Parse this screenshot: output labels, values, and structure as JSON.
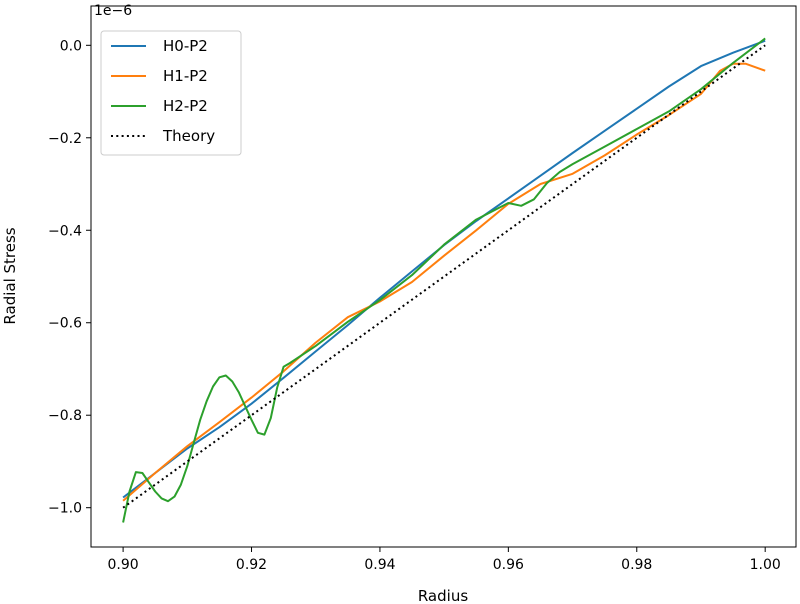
{
  "chart_data": {
    "type": "line",
    "title": "",
    "xlabel": "Radius",
    "ylabel": "Radial Stress",
    "y_offset_label": "1e−6",
    "xlim": [
      0.895,
      1.0048
    ],
    "ylim": [
      -1.085,
      0.085
    ],
    "xticks": [
      0.9,
      0.92,
      0.94,
      0.96,
      0.98,
      1.0
    ],
    "xtick_labels": [
      "0.90",
      "0.92",
      "0.94",
      "0.96",
      "0.98",
      "1.00"
    ],
    "yticks": [
      0.0,
      -0.2,
      -0.4,
      -0.6,
      -0.8,
      -1.0
    ],
    "ytick_labels": [
      "0.0",
      "−0.2",
      "−0.4",
      "−0.6",
      "−0.8",
      "−1.0"
    ],
    "grid": false,
    "legend_position": "top-left",
    "series": [
      {
        "name": "H0-P2",
        "color": "#1f77b4",
        "style": "solid",
        "x": [
          0.9,
          0.905,
          0.91,
          0.915,
          0.92,
          0.925,
          0.93,
          0.935,
          0.94,
          0.945,
          0.95,
          0.955,
          0.96,
          0.965,
          0.97,
          0.975,
          0.98,
          0.985,
          0.99,
          0.995,
          1.0
        ],
        "y": [
          -0.978,
          -0.925,
          -0.872,
          -0.826,
          -0.775,
          -0.719,
          -0.662,
          -0.605,
          -0.546,
          -0.489,
          -0.432,
          -0.38,
          -0.331,
          -0.282,
          -0.233,
          -0.185,
          -0.137,
          -0.089,
          -0.045,
          -0.016,
          0.01
        ]
      },
      {
        "name": "H1-P2",
        "color": "#ff7f0e",
        "style": "solid",
        "x": [
          0.9,
          0.905,
          0.91,
          0.915,
          0.92,
          0.925,
          0.93,
          0.935,
          0.94,
          0.945,
          0.95,
          0.955,
          0.96,
          0.965,
          0.97,
          0.975,
          0.98,
          0.985,
          0.99,
          0.993,
          0.995,
          0.997,
          1.0
        ],
        "y": [
          -0.985,
          -0.925,
          -0.867,
          -0.815,
          -0.762,
          -0.705,
          -0.643,
          -0.588,
          -0.554,
          -0.512,
          -0.455,
          -0.4,
          -0.343,
          -0.3,
          -0.278,
          -0.238,
          -0.193,
          -0.151,
          -0.105,
          -0.055,
          -0.04,
          -0.04,
          -0.055
        ]
      },
      {
        "name": "H2-P2",
        "color": "#2ca02c",
        "style": "solid",
        "x": [
          0.9,
          0.901,
          0.902,
          0.903,
          0.904,
          0.905,
          0.906,
          0.907,
          0.908,
          0.909,
          0.91,
          0.911,
          0.912,
          0.913,
          0.914,
          0.915,
          0.916,
          0.917,
          0.918,
          0.919,
          0.92,
          0.921,
          0.922,
          0.923,
          0.924,
          0.925,
          0.926,
          0.93,
          0.935,
          0.94,
          0.945,
          0.95,
          0.955,
          0.96,
          0.962,
          0.964,
          0.966,
          0.968,
          0.97,
          0.975,
          0.98,
          0.985,
          0.99,
          0.995,
          1.0
        ],
        "y": [
          -1.032,
          -0.965,
          -0.923,
          -0.925,
          -0.945,
          -0.965,
          -0.98,
          -0.986,
          -0.976,
          -0.95,
          -0.91,
          -0.86,
          -0.81,
          -0.77,
          -0.738,
          -0.718,
          -0.714,
          -0.727,
          -0.75,
          -0.78,
          -0.81,
          -0.838,
          -0.842,
          -0.806,
          -0.74,
          -0.695,
          -0.687,
          -0.65,
          -0.598,
          -0.551,
          -0.497,
          -0.431,
          -0.377,
          -0.341,
          -0.347,
          -0.333,
          -0.298,
          -0.274,
          -0.257,
          -0.219,
          -0.181,
          -0.143,
          -0.095,
          -0.038,
          0.015
        ]
      },
      {
        "name": "Theory",
        "color": "#000000",
        "style": "dotted",
        "x": [
          0.9,
          1.0
        ],
        "y": [
          -1.0,
          0.0
        ]
      }
    ]
  }
}
